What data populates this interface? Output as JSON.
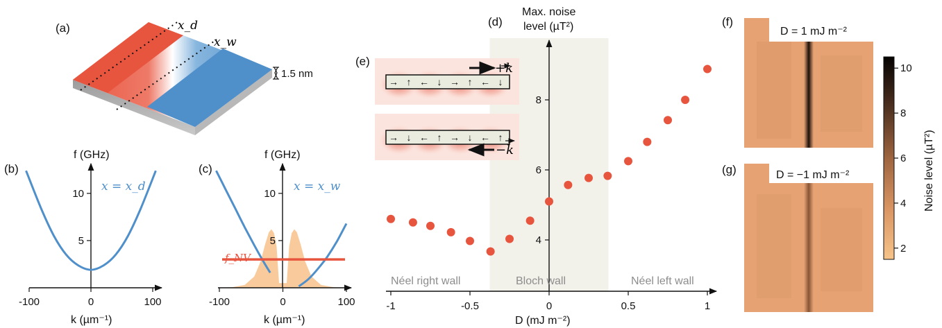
{
  "panels": {
    "a": {
      "label": "(a)",
      "xd": "x_d",
      "xw": "x_w",
      "thickness": "1.5 nm"
    },
    "b": {
      "label": "(b)",
      "ylabel": "f (GHz)",
      "xlabel": "k (µm⁻¹)",
      "curve_label": "x = x_d"
    },
    "c": {
      "label": "(c)",
      "ylabel": "f (GHz)",
      "xlabel": "k (µm⁻¹)",
      "curve_label": "x = x_w",
      "fnv_label": "f_NV"
    },
    "d": {
      "label": "(d)",
      "ylabel_line1": "Max. noise",
      "ylabel_line2": "level (µT²)",
      "xlabel": "D (mJ m⁻²)",
      "regions": [
        "Néel right wall",
        "Bloch wall",
        "Néel left wall"
      ]
    },
    "e": {
      "label": "(e)",
      "k_plus": "+k",
      "k_minus": "−k"
    },
    "f": {
      "label": "(f)",
      "title": "D = 1 mJ m⁻²"
    },
    "g": {
      "label": "(g)",
      "title": "D = −1 mJ m⁻²"
    },
    "colorbar": {
      "label": "Noise level (µT²)",
      "ticks": [
        "2",
        "4",
        "6",
        "8",
        "10"
      ]
    }
  },
  "colors": {
    "red": "#e8553f",
    "blue": "#4f8fca",
    "orange_fill": "#f8c592",
    "bloch_band": "#f3f2ea",
    "map_bg": "#e6a273"
  },
  "chart_data": [
    {
      "type": "line",
      "panel": "b",
      "title": "",
      "xlabel": "k (µm⁻¹)",
      "ylabel": "f (GHz)",
      "xlim": [
        -100,
        100
      ],
      "ylim": [
        0,
        13
      ],
      "xticks": [
        -100,
        0,
        100
      ],
      "yticks": [
        5,
        10
      ],
      "series": [
        {
          "name": "x = x_d",
          "x": [
            -105,
            -80,
            -60,
            -40,
            -20,
            0,
            20,
            40,
            60,
            80,
            105
          ],
          "y": [
            12.4,
            8.3,
            5.5,
            3.5,
            2.35,
            1.9,
            2.35,
            3.5,
            5.5,
            8.3,
            12.4
          ]
        }
      ]
    },
    {
      "type": "line",
      "panel": "c",
      "title": "",
      "xlabel": "k (µm⁻¹)",
      "ylabel": "f (GHz)",
      "xlim": [
        -100,
        100
      ],
      "ylim": [
        0,
        13
      ],
      "xticks": [
        -100,
        0,
        100
      ],
      "yticks": [
        5,
        10
      ],
      "series": [
        {
          "name": "x = x_w",
          "branches": [
            {
              "x": [
                -105,
                -90,
                -75,
                -60,
                -45,
                -30,
                -20
              ],
              "y": [
                12.4,
                10.4,
                8.4,
                6.4,
                4.5,
                2.7,
                1.6
              ]
            },
            {
              "x": [
                25,
                40,
                55,
                70,
                85,
                100
              ],
              "y": [
                0.15,
                0.9,
                2.0,
                3.3,
                4.9,
                6.8
              ]
            }
          ]
        },
        {
          "name": "f_NV",
          "x": [
            -110,
            110
          ],
          "y": [
            3.0,
            3.0
          ]
        },
        {
          "name": "filter",
          "x": [
            -105,
            -80,
            -60,
            -45,
            -35,
            -28,
            -22,
            -18,
            -14,
            -10,
            -6,
            6,
            10,
            14,
            18,
            22,
            28,
            35,
            45,
            60,
            80,
            105
          ],
          "y": [
            0,
            0.05,
            0.3,
            1.2,
            2.8,
            4.6,
            5.9,
            6.2,
            5.8,
            4.4,
            0.5,
            0.5,
            4.4,
            5.8,
            6.2,
            5.9,
            4.6,
            2.8,
            1.2,
            0.3,
            0.05,
            0
          ]
        }
      ]
    },
    {
      "type": "scatter",
      "panel": "d",
      "title": "",
      "xlabel": "D (mJ m⁻²)",
      "ylabel": "Max. noise level (µT²)",
      "xlim": [
        -1.05,
        1.05
      ],
      "ylim": [
        2.1,
        9.6
      ],
      "xticks": [
        -1,
        -0.5,
        0,
        0.5,
        1
      ],
      "yticks": [
        4,
        6,
        8
      ],
      "bloch_region": [
        -0.375,
        0.375
      ],
      "series": [
        {
          "name": "max noise",
          "x": [
            -1.0,
            -0.86,
            -0.75,
            -0.62,
            -0.5,
            -0.37,
            -0.25,
            -0.12,
            0.0,
            0.12,
            0.25,
            0.37,
            0.5,
            0.62,
            0.75,
            0.86,
            1.0
          ],
          "y": [
            4.6,
            4.5,
            4.4,
            4.22,
            3.97,
            3.67,
            4.03,
            4.55,
            5.1,
            5.57,
            5.77,
            5.83,
            6.25,
            6.8,
            7.42,
            8.0,
            8.88
          ]
        }
      ]
    },
    {
      "type": "heatmap",
      "panel": "colorbar",
      "title": "",
      "label": "Noise level (µT²)",
      "range": [
        1.5,
        10.5
      ],
      "ticks": [
        2,
        4,
        6,
        8,
        10
      ]
    }
  ]
}
